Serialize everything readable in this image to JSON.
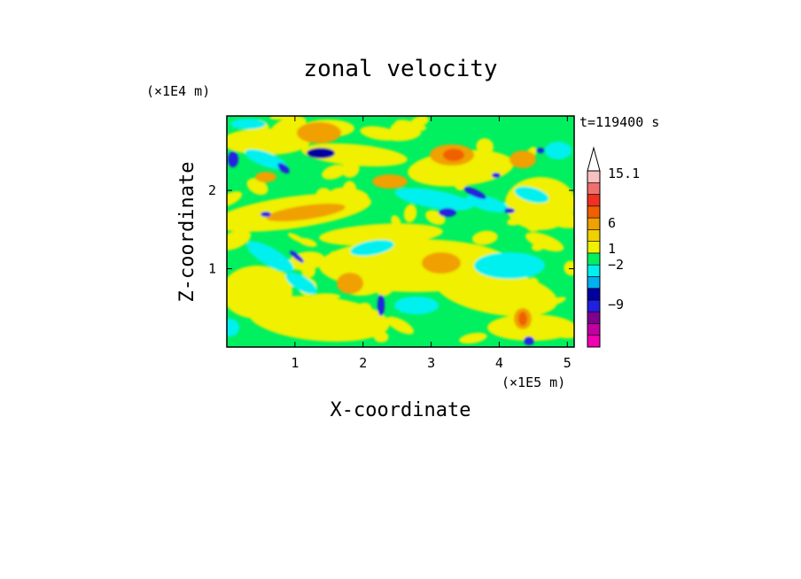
{
  "chart_data": {
    "type": "heatmap",
    "title": "zonal velocity",
    "xlabel": "X-coordinate",
    "ylabel": "Z-coordinate",
    "x_unit": "(×1E5 m)",
    "y_unit": "(×1E4 m)",
    "time_label": "t=119400 s",
    "xlim": [
      0,
      5.1
    ],
    "ylim": [
      0,
      2.95
    ],
    "x_ticks": [
      "1",
      "2",
      "3",
      "4",
      "5"
    ],
    "y_ticks": [
      "1",
      "2"
    ],
    "colorbar": {
      "labels": [
        {
          "text": "15.1",
          "value": 15.1
        },
        {
          "text": "6",
          "value": 6
        },
        {
          "text": "1",
          "value": 1
        },
        {
          "text": "−2",
          "value": -2
        },
        {
          "text": "−9",
          "value": -9
        }
      ],
      "levels": [
        {
          "color": "#f000b0"
        },
        {
          "color": "#c000a0"
        },
        {
          "color": "#800090"
        },
        {
          "color": "#2020e0"
        },
        {
          "color": "#0000a0"
        },
        {
          "color": "#00b0f0"
        },
        {
          "color": "#00f0f0"
        },
        {
          "color": "#00f060"
        },
        {
          "color": "#f0f000"
        },
        {
          "color": "#f0d000"
        },
        {
          "color": "#f0a000"
        },
        {
          "color": "#f06000"
        },
        {
          "color": "#f03020"
        },
        {
          "color": "#f07070"
        },
        {
          "color": "#f8c0c0"
        }
      ]
    },
    "field_colors": {
      "background": "#00f060",
      "yellow": "#f0f000",
      "orange": "#f0a000",
      "darkorange": "#f06000",
      "cyan": "#00f0f0",
      "blue": "#2020e0",
      "darkblue": "#0000a0"
    }
  }
}
